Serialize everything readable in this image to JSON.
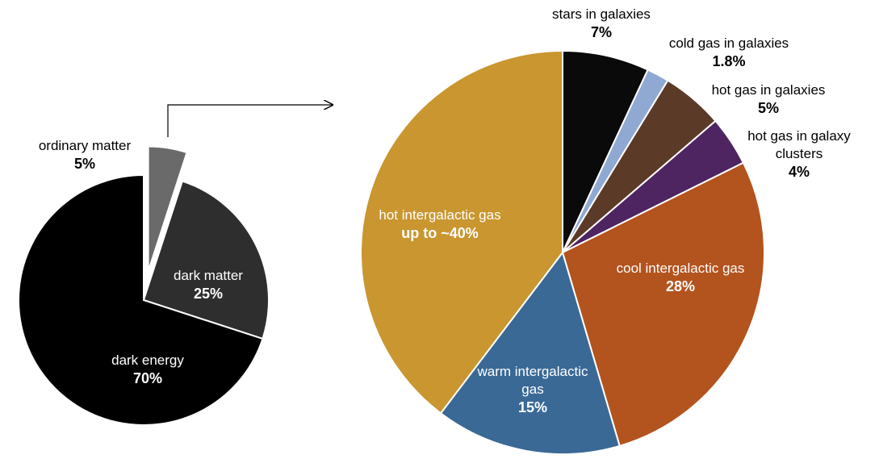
{
  "chart_data": [
    {
      "type": "pie",
      "categories": [
        "ordinary matter",
        "dark matter",
        "dark energy"
      ],
      "values": [
        5,
        25,
        70
      ],
      "value_labels": [
        "5%",
        "25%",
        "70%"
      ],
      "colors": [
        "#6a6a6a",
        "#2e2e2e",
        "#000000"
      ]
    },
    {
      "type": "pie",
      "categories": [
        "stars in galaxies",
        "cold gas in galaxies",
        "hot gas in galaxies",
        "hot gas in galaxy clusters",
        "cool intergalactic gas",
        "warm intergalactic gas",
        "hot intergalactic gas"
      ],
      "values": [
        7,
        1.8,
        5,
        4,
        28,
        15,
        40
      ],
      "value_labels": [
        "7%",
        "1.8%",
        "5%",
        "4%",
        "28%",
        "15%",
        "up to ~40%"
      ],
      "colors": [
        "#0a0a0a",
        "#8fa9d3",
        "#5b3a28",
        "#4e2461",
        "#b3531e",
        "#3a6996",
        "#c9962f"
      ]
    }
  ]
}
